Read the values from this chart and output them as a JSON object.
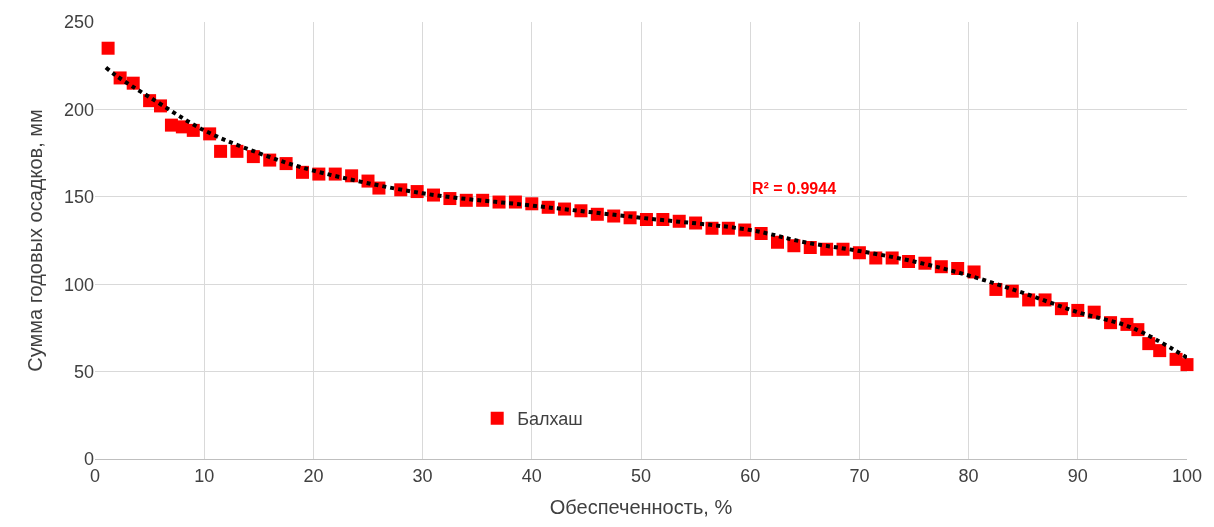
{
  "chart_data": {
    "type": "scatter",
    "xlabel": "Обеспеченность, %",
    "ylabel": "Сумма годовых осадков, мм",
    "xlim": [
      0,
      100
    ],
    "xticks": [
      0,
      10,
      20,
      30,
      40,
      50,
      60,
      70,
      80,
      90,
      100
    ],
    "ylim": [
      0,
      250
    ],
    "yticks": [
      0,
      50,
      100,
      150,
      200,
      250
    ],
    "grid": true,
    "legend": "bottom left",
    "annotations": [
      "R² = 0.9944"
    ],
    "series": [
      {
        "name": "Балхаш",
        "color": "#ff0000",
        "marker": "square",
        "x": [
          1.2,
          2.3,
          3.5,
          5,
          6,
          7,
          8,
          9,
          10.5,
          11.5,
          13,
          14.5,
          16,
          17.5,
          19,
          20.5,
          22,
          23.5,
          25,
          26,
          28,
          29.5,
          31,
          32.5,
          34,
          35.5,
          37,
          38.5,
          40,
          41.5,
          43,
          44.5,
          46,
          47.5,
          49,
          50.5,
          52,
          53.5,
          55,
          56.5,
          58,
          59.5,
          61,
          62.5,
          64,
          65.5,
          67,
          68.5,
          70,
          71.5,
          73,
          74.5,
          76,
          77.5,
          79,
          80.5,
          82.5,
          84,
          85.5,
          87,
          88.5,
          90,
          91.5,
          93,
          94.5,
          95.5,
          96.5,
          97.5,
          99,
          100
        ],
        "values": [
          235,
          218,
          215,
          205,
          202,
          191,
          190,
          188,
          186,
          176,
          176,
          173,
          171,
          169,
          164,
          163,
          163,
          162,
          159,
          155,
          154,
          153,
          151,
          149,
          148,
          148,
          147,
          147,
          146,
          144,
          143,
          142,
          140,
          139,
          138,
          137,
          137,
          136,
          135,
          132,
          132,
          131,
          129,
          124,
          122,
          121,
          120,
          120,
          118,
          115,
          115,
          113,
          112,
          110,
          109,
          107,
          97,
          96,
          91,
          91,
          86,
          85,
          84,
          78,
          77,
          74,
          66,
          62,
          57,
          54
        ]
      },
      {
        "color": "#000000",
        "type": "line",
        "line_style": "dotted",
        "x": [
          1,
          2,
          5,
          10,
          15,
          20,
          30,
          40,
          50,
          60,
          65,
          70,
          75,
          80,
          85,
          90,
          95,
          100
        ],
        "values": [
          224,
          219,
          207,
          188,
          175,
          165,
          152,
          145,
          138,
          131,
          124,
          119,
          113,
          105,
          95,
          84,
          75,
          58
        ]
      }
    ]
  }
}
